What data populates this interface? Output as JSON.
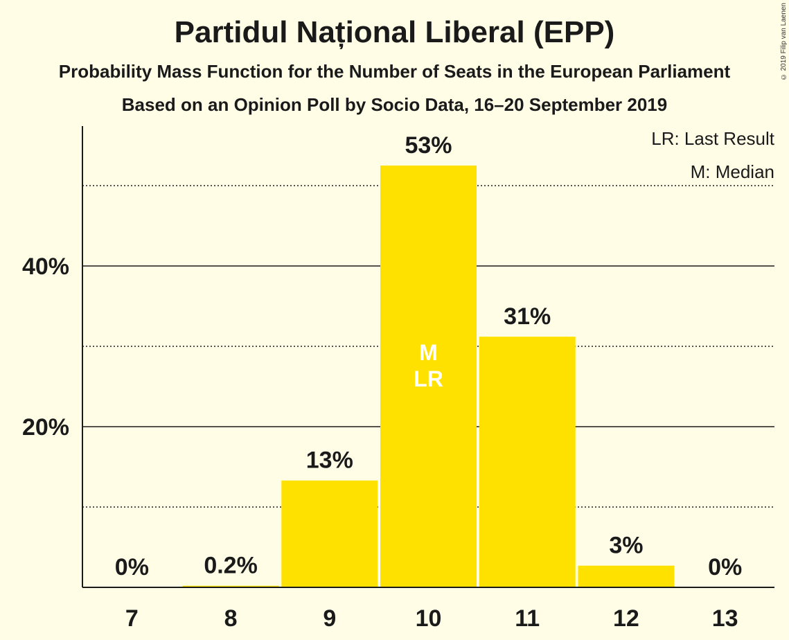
{
  "title": "Partidul Național Liberal (EPP)",
  "subtitle": "Probability Mass Function for the Number of Seats in the European Parliament",
  "subtitle2": "Based on an Opinion Poll by Socio Data, 16–20 September 2019",
  "copyright": "© 2019 Filip van Laenen",
  "legend": {
    "last_result": "LR: Last Result",
    "median": "M: Median"
  },
  "colors": {
    "background": "#FFFDE6",
    "bar": "#FFE100",
    "text": "#1a1a1a"
  },
  "chart_data": {
    "type": "bar",
    "categories": [
      "7",
      "8",
      "9",
      "10",
      "11",
      "12",
      "13"
    ],
    "values": [
      0,
      0.2,
      13.3,
      52.5,
      31.2,
      2.7,
      0
    ],
    "value_labels": [
      "0%",
      "0.2%",
      "13%",
      "53%",
      "31%",
      "3%",
      "0%"
    ],
    "ylim": [
      0,
      57
    ],
    "yticks": [
      {
        "value": 20,
        "label": "20%"
      },
      {
        "value": 40,
        "label": "40%"
      }
    ],
    "dotted_gridlines": [
      10,
      30,
      50
    ],
    "bar_annotations": [
      {
        "category": "10",
        "lines": [
          "M",
          "LR"
        ]
      }
    ],
    "legend_position": "top-right"
  }
}
